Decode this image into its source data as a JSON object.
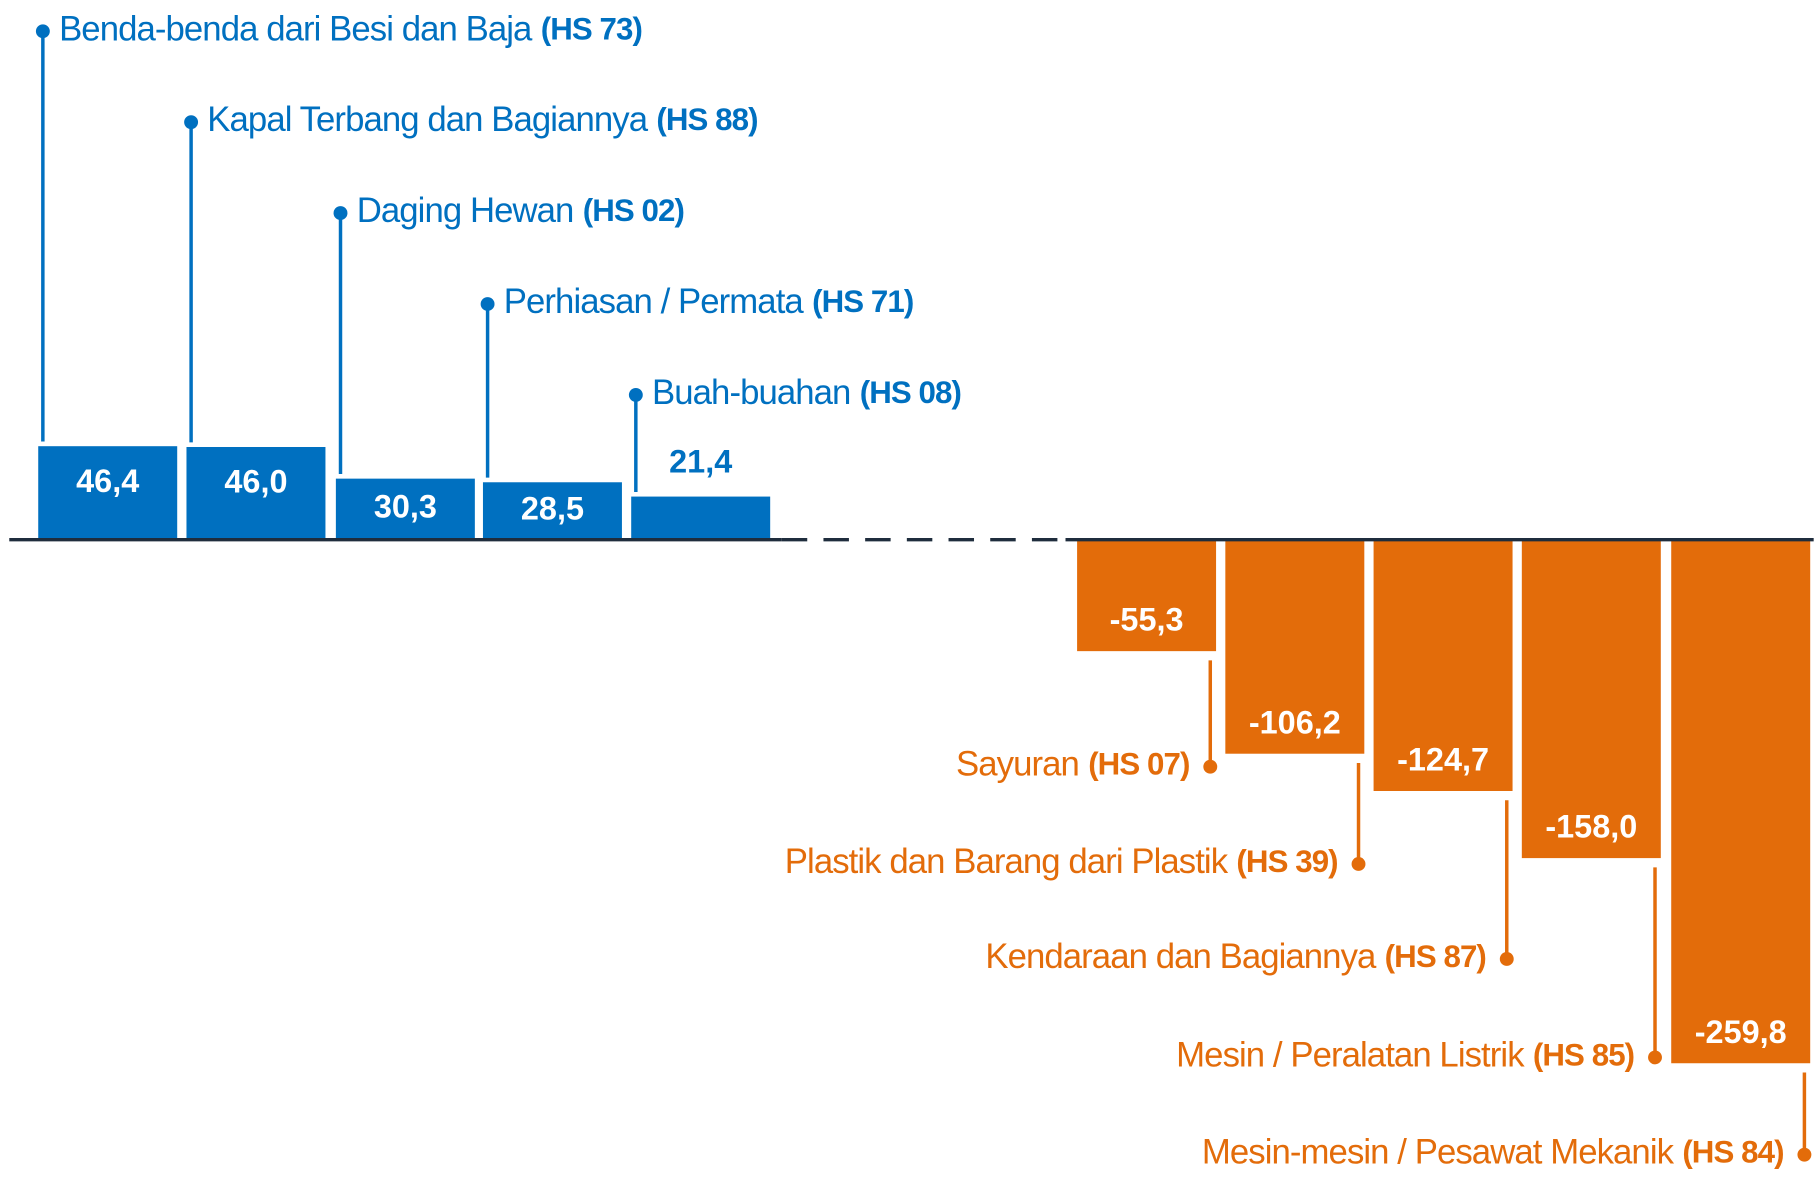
{
  "chart_data": {
    "type": "bar",
    "categories": [
      "Benda-benda dari Besi dan Baja",
      "Kapal Terbang dan Bagiannya",
      "Daging Hewan",
      "Perhiasan / Permata",
      "Buah-buahan",
      "Sayuran",
      "Plastik dan Barang dari Plastik",
      "Kendaraan dan Bagiannya",
      "Mesin / Peralatan Listrik",
      "Mesin-mesin / Pesawat Mekanik"
    ],
    "codes": [
      "(HS 73)",
      "(HS 88)",
      "(HS 02)",
      "(HS 71)",
      "(HS 08)",
      "(HS 07)",
      "(HS 39)",
      "(HS 87)",
      "(HS 85)",
      "(HS 84)"
    ],
    "values": [
      46.4,
      46.0,
      30.3,
      28.5,
      21.4,
      -55.3,
      -106.2,
      -124.7,
      -158.0,
      -259.8
    ],
    "value_labels": [
      "46,4",
      "46,0",
      "30,3",
      "28,5",
      "21,4",
      "-55,3",
      "-106,2",
      "-124,7",
      "-158,0",
      "-259,8"
    ],
    "positive_color": "#0070c0",
    "negative_color": "#e36c0a"
  }
}
